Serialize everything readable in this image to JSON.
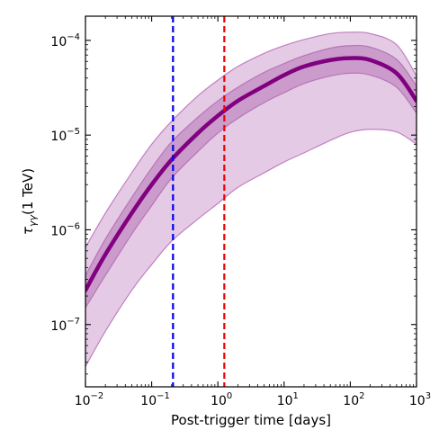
{
  "chart_data": {
    "type": "line",
    "x_scale": "log",
    "y_scale": "log",
    "xlim": [
      0.01,
      1000
    ],
    "ylim": [
      2.2e-08,
      0.00018
    ],
    "xlabel": "Post-trigger time [days]",
    "ylabel": "τγγ(1 TeV)",
    "ylabel_main": "τ",
    "ylabel_sub": "γγ",
    "ylabel_rest": "(1 TeV)",
    "x_ticks": [
      {
        "value": 0.01,
        "base": "10",
        "exp": "−2"
      },
      {
        "value": 0.1,
        "base": "10",
        "exp": "−1"
      },
      {
        "value": 1,
        "base": "10",
        "exp": "0"
      },
      {
        "value": 10,
        "base": "10",
        "exp": "1"
      },
      {
        "value": 100,
        "base": "10",
        "exp": "2"
      },
      {
        "value": 1000,
        "base": "10",
        "exp": "3"
      }
    ],
    "y_ticks": [
      {
        "value": 1e-07,
        "base": "10",
        "exp": "−7"
      },
      {
        "value": 1e-06,
        "base": "10",
        "exp": "−6"
      },
      {
        "value": 1e-05,
        "base": "10",
        "exp": "−5"
      },
      {
        "value": 0.0001,
        "base": "10",
        "exp": "−4"
      }
    ],
    "grid": false,
    "colors": {
      "median": "#800080",
      "band_outer": "#c080c0",
      "band_inner": "#a050a0",
      "vline_blue": "#0000ee",
      "vline_red": "#ee0000"
    },
    "x": [
      0.01,
      0.02,
      0.05,
      0.1,
      0.2,
      0.5,
      1,
      2,
      5,
      10,
      20,
      50,
      100,
      200,
      500,
      1000
    ],
    "median": [
      2.3e-07,
      5.5e-07,
      1.5e-06,
      3e-06,
      5.5e-06,
      1.05e-05,
      1.6e-05,
      2.3e-05,
      3.3e-05,
      4.3e-05,
      5.3e-05,
      6.2e-05,
      6.5e-05,
      6.2e-05,
      4.5e-05,
      2.3e-05
    ],
    "inner_band": {
      "upper": [
        3.3e-07,
        8e-07,
        2.2e-06,
        4.5e-06,
        8.5e-06,
        1.55e-05,
        2.3e-05,
        3.2e-05,
        4.6e-05,
        5.7e-05,
        6.9e-05,
        8.3e-05,
        8.8e-05,
        8.5e-05,
        6.3e-05,
        3.3e-05
      ],
      "lower": [
        1.5e-07,
        3.3e-07,
        9e-07,
        1.8e-06,
        3.5e-06,
        6.7e-06,
        1.05e-05,
        1.5e-05,
        2.2e-05,
        2.8e-05,
        3.5e-05,
        4.2e-05,
        4.5e-05,
        4.3e-05,
        3.2e-05,
        1.7e-05
      ]
    },
    "outer_band": {
      "upper": [
        6.5e-07,
        1.5e-06,
        4e-06,
        8e-06,
        1.4e-05,
        2.6e-05,
        3.8e-05,
        5.3e-05,
        7.3e-05,
        8.8e-05,
        0.000102,
        0.000118,
        0.000122,
        0.000118,
        9e-05,
        4.2e-05
      ],
      "lower": [
        3.6e-08,
        8.5e-08,
        2.3e-07,
        4.3e-07,
        7.6e-07,
        1.3e-06,
        1.9e-06,
        2.8e-06,
        4e-06,
        5.2e-06,
        6.5e-06,
        8.8e-06,
        1.07e-05,
        1.15e-05,
        1.08e-05,
        8e-06
      ]
    },
    "vertical_lines": [
      {
        "x": 0.21,
        "color": "#0000ee",
        "style": "dashed"
      },
      {
        "x": 1.25,
        "color": "#ee0000",
        "style": "dashed"
      }
    ]
  }
}
